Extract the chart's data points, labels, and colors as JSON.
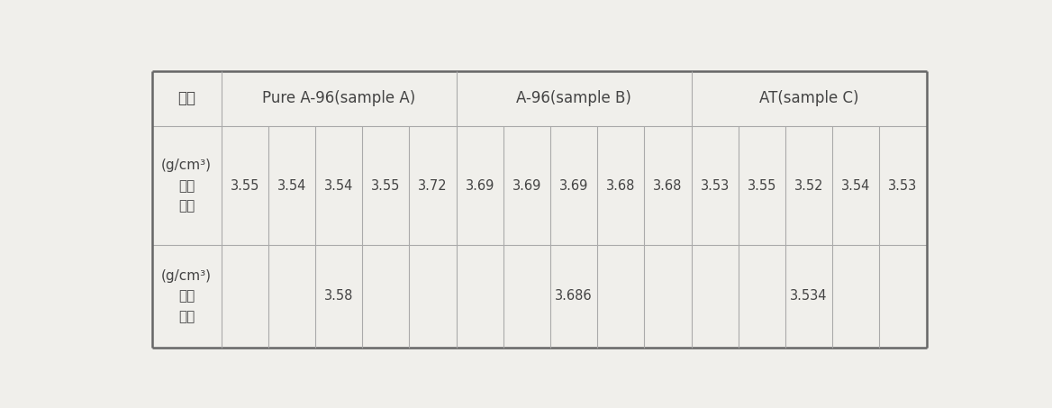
{
  "header_col0": "시편",
  "header_col1": "Pure A-96(sample A)",
  "header_col2": "A-96(sample B)",
  "header_col3": "AT(sample C)",
  "row1_label_lines": [
    "측정",
    "밀도",
    "(g/cm³)"
  ],
  "row1_values_A": [
    "3.55",
    "3.54",
    "3.54",
    "3.55",
    "3.72"
  ],
  "row1_values_B": [
    "3.69",
    "3.69",
    "3.69",
    "3.68",
    "3.68"
  ],
  "row1_values_C": [
    "3.53",
    "3.55",
    "3.52",
    "3.54",
    "3.53"
  ],
  "row2_label_lines": [
    "평균",
    "밀도",
    "(g/cm³)"
  ],
  "row2_values": [
    "3.58",
    "3.686",
    "3.534"
  ],
  "bg_color": "#f0efeb",
  "line_color_outer": "#666666",
  "line_color_inner": "#aaaaaa",
  "text_color": "#444444",
  "fontsize_header": 12,
  "fontsize_cell": 10.5,
  "fontsize_label": 11
}
